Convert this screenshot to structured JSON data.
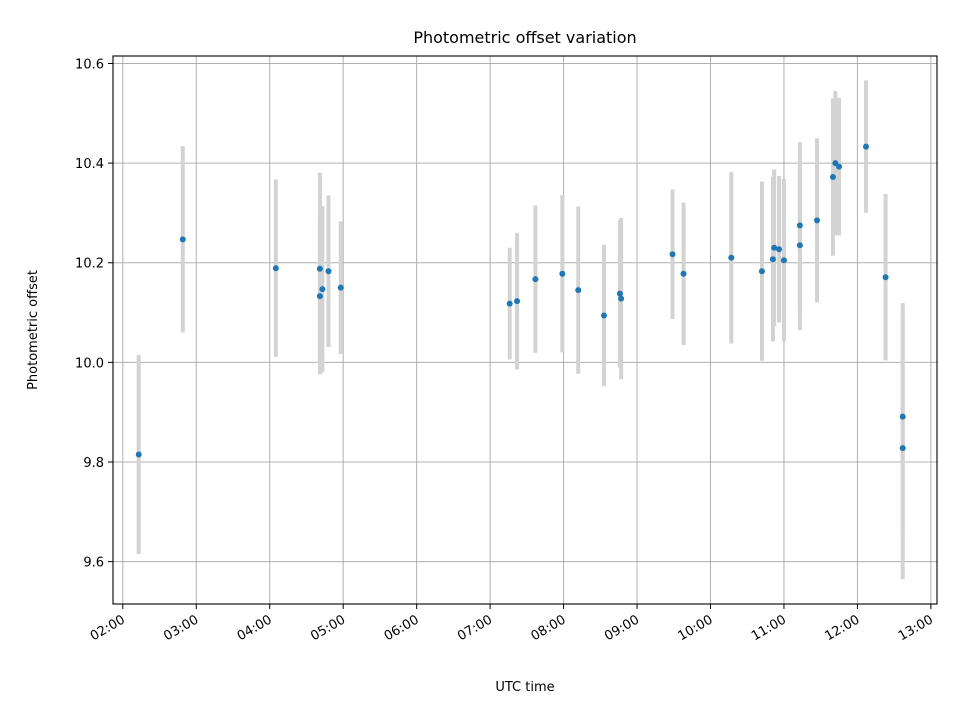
{
  "chart_data": {
    "type": "scatter",
    "title": "Photometric offset variation",
    "xlabel": "UTC time",
    "ylabel": "Photometric offset",
    "x_ticks": [
      "02:00",
      "03:00",
      "04:00",
      "05:00",
      "06:00",
      "07:00",
      "08:00",
      "09:00",
      "10:00",
      "11:00",
      "12:00",
      "13:00"
    ],
    "xlim": [
      "01:52",
      "13:05"
    ],
    "y_ticks": [
      "9.6",
      "9.8",
      "10.0",
      "10.2",
      "10.4",
      "10.6"
    ],
    "ylim": [
      9.515,
      10.615
    ],
    "grid": true,
    "colors": {
      "point": "#1f77b4",
      "errorbar": "#d3d3d3",
      "grid": "#b0b0b0"
    },
    "series": [
      {
        "points": [
          {
            "x": "02:13",
            "y": 9.815,
            "err": 0.2
          },
          {
            "x": "02:49",
            "y": 10.247,
            "err": 0.187
          },
          {
            "x": "04:05",
            "y": 10.189,
            "err": 0.178
          },
          {
            "x": "04:41",
            "y": 10.188,
            "err": 0.193
          },
          {
            "x": "04:41",
            "y": 10.133,
            "err": 0.157
          },
          {
            "x": "04:43",
            "y": 10.147,
            "err": 0.167
          },
          {
            "x": "04:48",
            "y": 10.183,
            "err": 0.152
          },
          {
            "x": "04:58",
            "y": 10.15,
            "err": 0.133
          },
          {
            "x": "07:16",
            "y": 10.118,
            "err": 0.112
          },
          {
            "x": "07:22",
            "y": 10.123,
            "err": 0.137
          },
          {
            "x": "07:37",
            "y": 10.167,
            "err": 0.148
          },
          {
            "x": "07:59",
            "y": 10.178,
            "err": 0.158
          },
          {
            "x": "08:12",
            "y": 10.145,
            "err": 0.168
          },
          {
            "x": "08:33",
            "y": 10.094,
            "err": 0.142
          },
          {
            "x": "08:46",
            "y": 10.138,
            "err": 0.148
          },
          {
            "x": "08:47",
            "y": 10.128,
            "err": 0.162
          },
          {
            "x": "09:29",
            "y": 10.217,
            "err": 0.13
          },
          {
            "x": "09:38",
            "y": 10.178,
            "err": 0.143
          },
          {
            "x": "10:17",
            "y": 10.21,
            "err": 0.172
          },
          {
            "x": "10:42",
            "y": 10.183,
            "err": 0.18
          },
          {
            "x": "10:51",
            "y": 10.207,
            "err": 0.165
          },
          {
            "x": "10:52",
            "y": 10.23,
            "err": 0.157
          },
          {
            "x": "10:56",
            "y": 10.227,
            "err": 0.147
          },
          {
            "x": "11:00",
            "y": 10.205,
            "err": 0.163
          },
          {
            "x": "11:13",
            "y": 10.275,
            "err": 0.167
          },
          {
            "x": "11:13",
            "y": 10.235,
            "err": 0.17
          },
          {
            "x": "11:27",
            "y": 10.285,
            "err": 0.165
          },
          {
            "x": "11:40",
            "y": 10.372,
            "err": 0.158
          },
          {
            "x": "11:42",
            "y": 10.4,
            "err": 0.145
          },
          {
            "x": "11:45",
            "y": 10.393,
            "err": 0.138
          },
          {
            "x": "12:07",
            "y": 10.433,
            "err": 0.133
          },
          {
            "x": "12:23",
            "y": 10.171,
            "err": 0.167
          },
          {
            "x": "12:37",
            "y": 9.891,
            "err": 0.228
          },
          {
            "x": "12:37",
            "y": 9.828,
            "err": 0.263
          }
        ]
      }
    ]
  }
}
